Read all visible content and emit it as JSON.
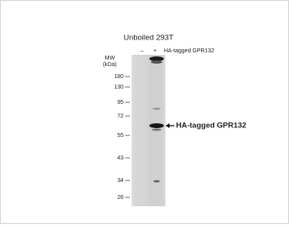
{
  "header": {
    "title": "Unboiled 293T"
  },
  "lanes": {
    "labels": [
      "–",
      "+"
    ],
    "sample": "HA-tagged GPR132"
  },
  "mw": {
    "label": "MW",
    "unit": "(kDa)",
    "markers": [
      180,
      130,
      95,
      72,
      55,
      43,
      34,
      26
    ]
  },
  "annotation": {
    "label": "HA-tagged GPR132"
  }
}
